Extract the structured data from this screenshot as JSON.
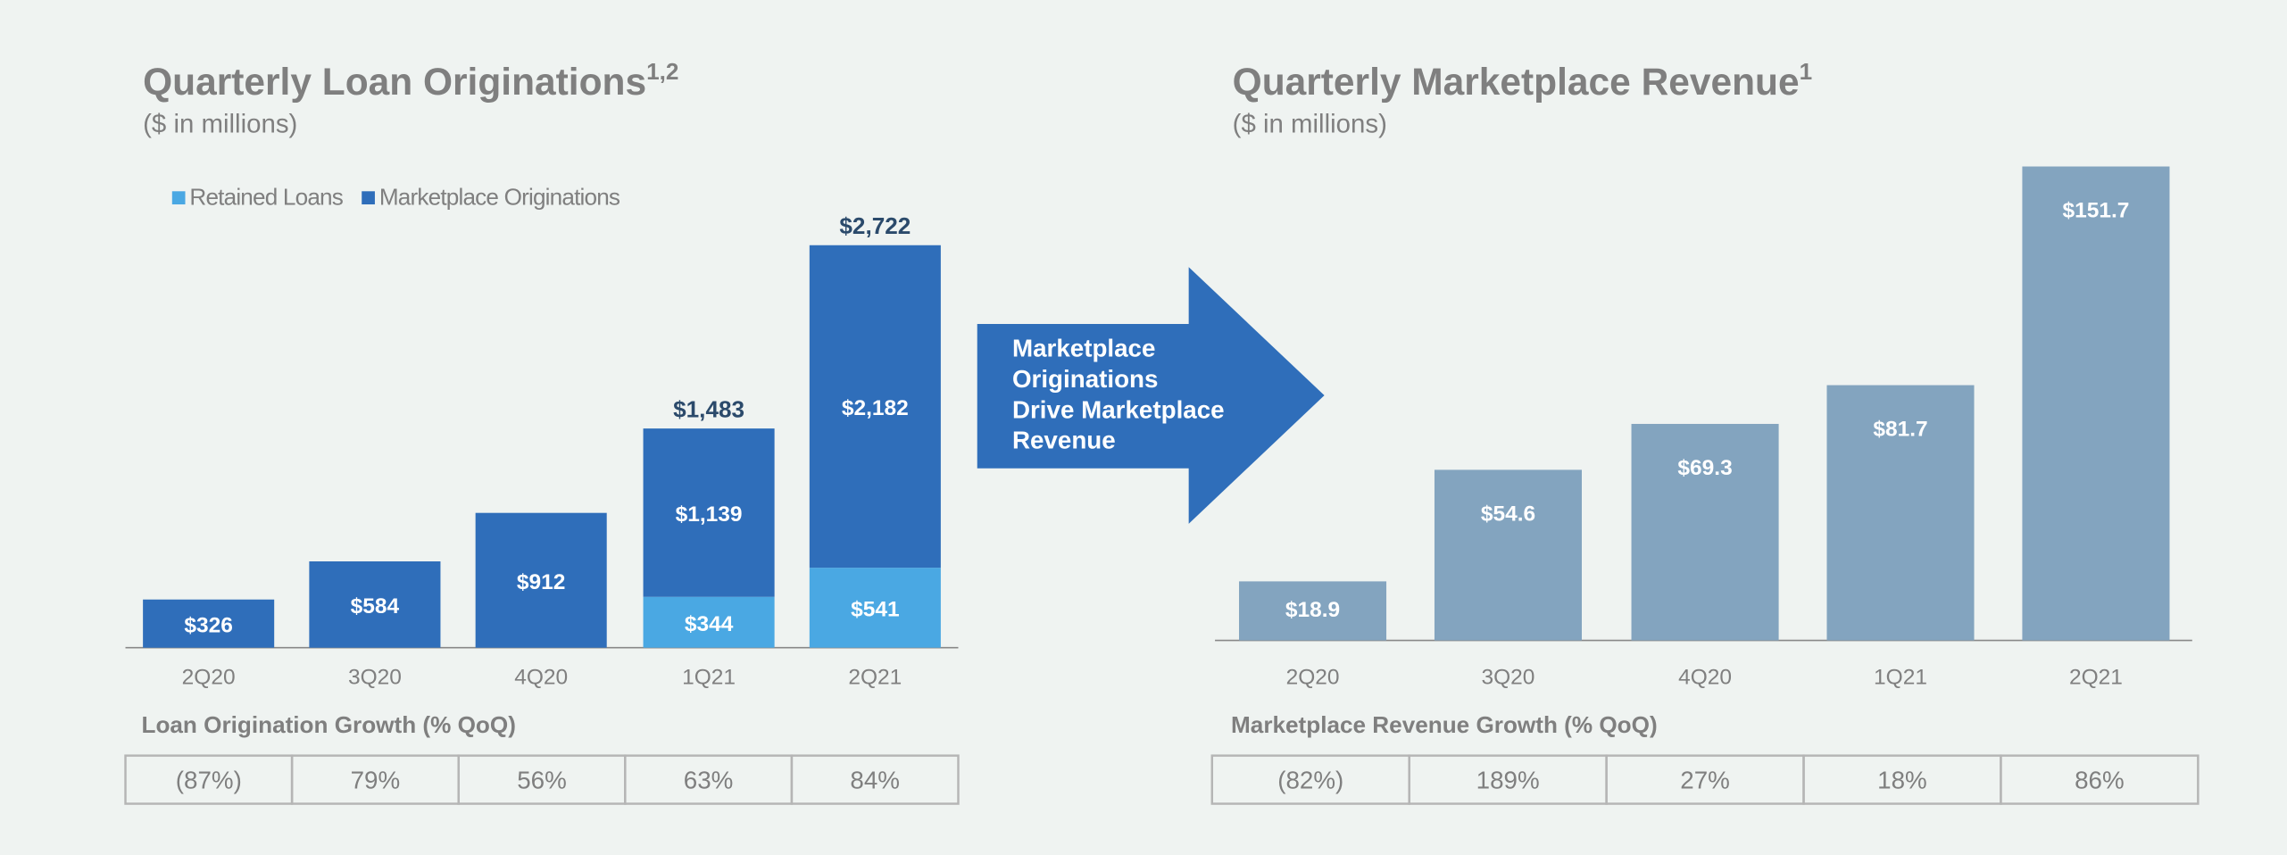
{
  "chart_data": [
    {
      "type": "stacked-bar",
      "title": "Quarterly Loan Originations",
      "title_superscript": "1,2",
      "subtitle": "($ in millions)",
      "categories": [
        "2Q20",
        "3Q20",
        "4Q20",
        "1Q21",
        "2Q21"
      ],
      "series": [
        {
          "name": "Retained Loans",
          "color": "#4aa8e3",
          "values": [
            null,
            null,
            null,
            344,
            541
          ],
          "value_labels": [
            null,
            null,
            null,
            "$344",
            "$541"
          ]
        },
        {
          "name": "Marketplace Originations",
          "color": "#2f6eba",
          "values": [
            326,
            584,
            912,
            1139,
            2182
          ],
          "value_labels": [
            "$326",
            "$584",
            "$912",
            "$1,139",
            "$2,182"
          ]
        }
      ],
      "totals": [
        null,
        null,
        null,
        1483,
        2722
      ],
      "total_labels": [
        null,
        null,
        null,
        "$1,483",
        "$2,722"
      ],
      "growth": {
        "title": "Loan Origination Growth (% QoQ)",
        "values": [
          "(87%)",
          "79%",
          "56%",
          "63%",
          "84%"
        ]
      }
    },
    {
      "type": "bar",
      "title": "Quarterly Marketplace Revenue",
      "title_superscript": "1",
      "subtitle": "($ in millions)",
      "categories": [
        "2Q20",
        "3Q20",
        "4Q20",
        "1Q21",
        "2Q21"
      ],
      "color": "#83a4bf",
      "values": [
        18.9,
        54.6,
        69.3,
        81.7,
        151.7
      ],
      "value_labels": [
        "$18.9",
        "$54.6",
        "$69.3",
        "$81.7",
        "$151.7"
      ],
      "growth": {
        "title": "Marketplace Revenue Growth (% QoQ)",
        "values": [
          "(82%)",
          "189%",
          "27%",
          "18%",
          "86%"
        ]
      }
    }
  ],
  "arrow_text": [
    "Marketplace",
    "Originations",
    "Drive Marketplace",
    "Revenue"
  ]
}
